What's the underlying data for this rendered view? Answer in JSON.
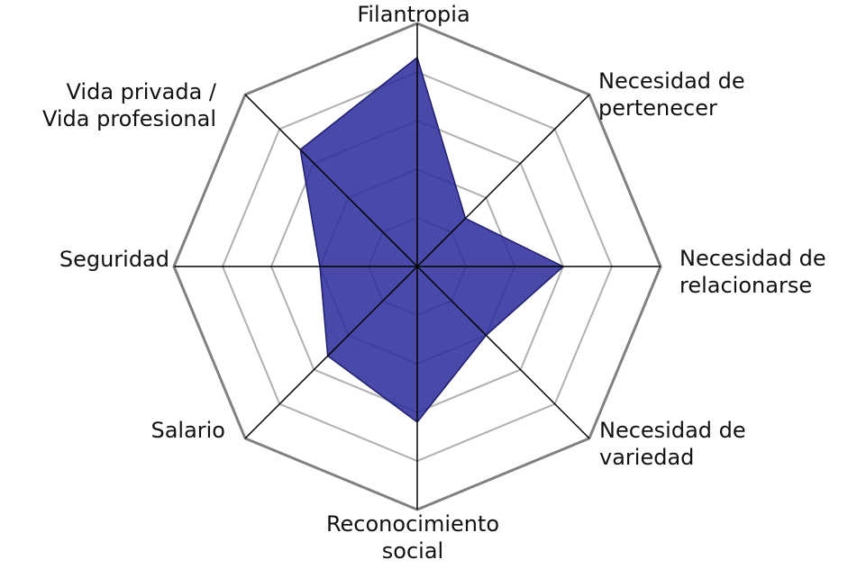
{
  "chart_data": {
    "type": "radar",
    "title": "",
    "axes": [
      {
        "key": "filantropia",
        "label_lines": [
          "Filantropia"
        ]
      },
      {
        "key": "necesidad_pertenecer",
        "label_lines": [
          "Necesidad de",
          "pertenecer"
        ]
      },
      {
        "key": "necesidad_relacionarse",
        "label_lines": [
          "Necesidad de",
          "relacionarse"
        ]
      },
      {
        "key": "necesidad_variedad",
        "label_lines": [
          "Necesidad de",
          "variedad"
        ]
      },
      {
        "key": "reconocimiento_social",
        "label_lines": [
          "Reconocimiento",
          "social"
        ]
      },
      {
        "key": "salario",
        "label_lines": [
          "Salario"
        ]
      },
      {
        "key": "seguridad",
        "label_lines": [
          "Seguridad"
        ]
      },
      {
        "key": "vida_privada_profesional",
        "label_lines": [
          "Vida privada /",
          "Vida profesional"
        ]
      }
    ],
    "scale": {
      "min": 0,
      "max": 5,
      "rings": 5
    },
    "series": [
      {
        "values": [
          4.3,
          1.4,
          3.0,
          2.0,
          3.2,
          2.6,
          2.0,
          3.4
        ]
      }
    ],
    "colors": {
      "fill": "#2b2b9c",
      "stroke": "#1e1e6e",
      "ring_inner": "#b0b0b0",
      "ring_outer": "#808080",
      "axis": "#000000"
    },
    "grid": true,
    "legend": "none"
  }
}
